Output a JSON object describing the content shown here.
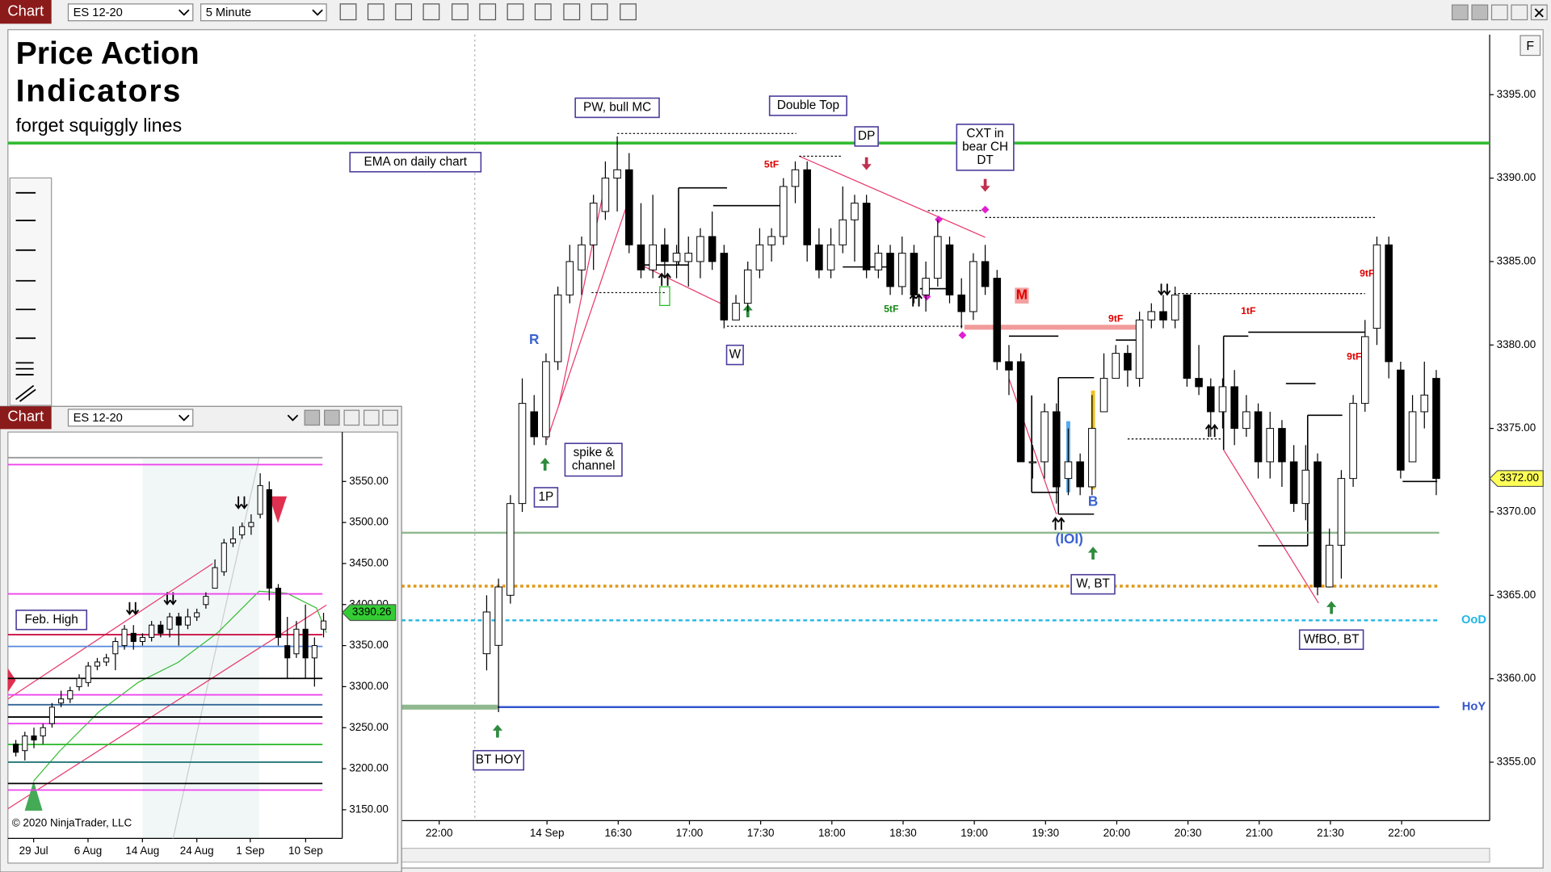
{
  "toolbar": {
    "tab": "Chart",
    "instrument": "ES 12-20",
    "interval": "5 Minute",
    "button": "F"
  },
  "overlay": {
    "title": [
      "Price Action",
      "Indicators"
    ],
    "subtitle": "forget squiggly lines"
  },
  "chart_data": [
    {
      "type": "candlestick",
      "up_color": "#ffffff",
      "down_color": "#000000",
      "wick_color": "#000000",
      "open": [
        3361.5,
        3362,
        3365,
        3370.5,
        3376,
        3374.5,
        3379,
        3383,
        3384.5,
        3386,
        3388,
        3390,
        3390.5,
        3386,
        3384.5,
        3386,
        3385,
        3385,
        3385,
        3386.5,
        3385.5,
        3381.5,
        3382.5,
        3384.5,
        3386,
        3386.5,
        3389.5,
        3390.5,
        3386,
        3384.5,
        3386,
        3387.5,
        3388.5,
        3384.5,
        3385.5,
        3383.5,
        3385.5,
        3383,
        3384,
        3386,
        3383,
        3382,
        3385,
        3384,
        3379,
        3379,
        3373,
        3373,
        3376,
        3372,
        3373,
        3371.5,
        3376,
        3378,
        3379.5,
        3378,
        3381.5,
        3382,
        3381.5,
        3383,
        3378,
        3377.5,
        3376,
        3377.5,
        3375,
        3376,
        3373,
        3375,
        3373,
        3370.5,
        3373,
        3365.5,
        3368,
        3372,
        3376.5,
        3381,
        3386,
        3378.5,
        3373,
        3376,
        3378
      ],
      "high": [
        3365,
        3366,
        3371,
        3378,
        3377,
        3379.5,
        3383.5,
        3386,
        3386.5,
        3389,
        3391,
        3392.5,
        3391.5,
        3388.5,
        3389,
        3387,
        3386,
        3386.5,
        3387,
        3388,
        3386,
        3383,
        3385,
        3387,
        3387,
        3390,
        3391,
        3391,
        3387,
        3387,
        3389.5,
        3389,
        3389,
        3386,
        3386,
        3386.5,
        3386,
        3385,
        3387.5,
        3386.5,
        3384,
        3385.5,
        3386,
        3384.5,
        3380,
        3379.5,
        3374,
        3376.5,
        3376.5,
        3375,
        3373.5,
        3377,
        3379.5,
        3380,
        3380,
        3382,
        3382.5,
        3383,
        3383.5,
        3383,
        3380,
        3378,
        3378,
        3378.5,
        3377,
        3376.5,
        3376,
        3375.5,
        3374,
        3374,
        3373.5,
        3369,
        3372.5,
        3377,
        3381.5,
        3386.5,
        3386.5,
        3379,
        3377,
        3379,
        3378.5
      ],
      "low": [
        3360.5,
        3358,
        3364.5,
        3370,
        3374,
        3374,
        3378.5,
        3382.5,
        3383,
        3384.5,
        3387.5,
        3388,
        3385.5,
        3384,
        3384,
        3384,
        3384,
        3383.5,
        3384,
        3384.5,
        3381,
        3381.5,
        3382,
        3384,
        3385,
        3386,
        3388.5,
        3385,
        3384,
        3384,
        3385.5,
        3385,
        3384,
        3384,
        3383,
        3383,
        3382.5,
        3382,
        3383.5,
        3382.5,
        3381,
        3381.5,
        3383,
        3378.5,
        3377,
        3373,
        3372,
        3372,
        3370.5,
        3371,
        3371,
        3371,
        3376,
        3378,
        3377.5,
        3377.5,
        3381,
        3381,
        3381,
        3377.5,
        3377,
        3374.5,
        3375,
        3374,
        3374.5,
        3372,
        3372,
        3371.5,
        3370,
        3369.5,
        3365,
        3365.5,
        3366,
        3371.5,
        3376,
        3380,
        3378,
        3372,
        3373,
        3375,
        3371
      ],
      "close": [
        3364,
        3365.5,
        3370.5,
        3376.5,
        3374.5,
        3379,
        3383,
        3385,
        3386,
        3388.5,
        3390,
        3390.5,
        3386,
        3384.5,
        3386,
        3385,
        3385.5,
        3385.5,
        3386.5,
        3385,
        3381.5,
        3382.5,
        3384.5,
        3386,
        3386.5,
        3389.5,
        3390.5,
        3386,
        3384.5,
        3386,
        3387.5,
        3388.5,
        3384.5,
        3385.5,
        3383.5,
        3385.5,
        3383,
        3384,
        3386.5,
        3383,
        3382,
        3385,
        3383.5,
        3379,
        3378.5,
        3373,
        3373,
        3376,
        3371.5,
        3373,
        3371.5,
        3375,
        3378,
        3379.5,
        3378.5,
        3381.5,
        3382,
        3381.5,
        3383,
        3378,
        3377.5,
        3376,
        3377.5,
        3375,
        3376,
        3373,
        3375,
        3373,
        3370.5,
        3372.5,
        3365.5,
        3368,
        3372,
        3376.5,
        3380.5,
        3386,
        3379,
        3372.5,
        3376,
        3377,
        3372
      ],
      "ylim": [
        3351.5,
        3398.6
      ],
      "yticks": [
        {
          "value": 3395,
          "label": "3395.00"
        },
        {
          "value": 3390,
          "label": "3390.00"
        },
        {
          "value": 3385,
          "label": "3385.00"
        },
        {
          "value": 3380,
          "label": "3380.00"
        },
        {
          "value": 3375,
          "label": "3375.00"
        },
        {
          "value": 3370,
          "label": "3370.00"
        },
        {
          "value": 3365,
          "label": "3365.00"
        },
        {
          "value": 3360,
          "label": "3360.00"
        },
        {
          "value": 3355,
          "label": "3355.00"
        }
      ],
      "xtick_labels": [
        "22:00",
        "14 Sep",
        "16:30",
        "17:00",
        "17:30",
        "18:00",
        "18:30",
        "19:00",
        "19:30",
        "20:00",
        "20:30",
        "21:00",
        "21:30",
        "22:00"
      ],
      "last_price": {
        "value": 3372,
        "label": "3372.00",
        "color": "#ffff55"
      },
      "levels": [
        {
          "value": 3392.1,
          "color": "#33bb33"
        },
        {
          "value": 3358.3,
          "color": "#3355cc",
          "label": "HoY"
        },
        {
          "value": 3363.5,
          "color": "#22b5e6",
          "style": "dashed",
          "label": "OoD"
        },
        {
          "value": 3365.55,
          "color": "#e09a1a",
          "style": "dotted"
        },
        {
          "value": 3368.75,
          "color": "#8fb88f"
        }
      ],
      "annotations": [
        {
          "text": "PW, bull MC",
          "boxed": true
        },
        {
          "text": "Double Top",
          "boxed": true
        },
        {
          "text": "DP",
          "boxed": true
        },
        {
          "lines": [
            "CXT in",
            "bear CH",
            "DT"
          ],
          "boxed": true
        },
        {
          "text": "EMA on daily chart",
          "boxed": true
        },
        {
          "text": "R",
          "color": "#3a62d0"
        },
        {
          "lines": [
            "spike &",
            "channel"
          ],
          "boxed": true
        },
        {
          "text": "1P",
          "boxed": true
        },
        {
          "text": "W",
          "boxed": true
        },
        {
          "text": "5tF",
          "color": "#e00000"
        },
        {
          "text": "5tF",
          "color": "#118811"
        },
        {
          "text": "9tF",
          "color": "#e00000"
        },
        {
          "text": "1tF",
          "color": "#e00000"
        },
        {
          "text": "9tF",
          "color": "#e00000"
        },
        {
          "text": "9tF",
          "color": "#e00000"
        },
        {
          "text": "M",
          "color": "#e00000"
        },
        {
          "text": "B",
          "color": "#3a62d0"
        },
        {
          "text": "(IOI)",
          "color": "#3a62d0"
        },
        {
          "text": "W, BT",
          "boxed": true
        },
        {
          "text": "WfBO, BT",
          "boxed": true
        },
        {
          "text": "BT HOY",
          "boxed": true
        }
      ]
    },
    {
      "type": "candlestick",
      "up_color": "#ffffff",
      "down_color": "#000000",
      "wick_color": "#000000",
      "open": [
        3230,
        3222,
        3240,
        3240,
        3255,
        3280,
        3285,
        3300,
        3305,
        3325,
        3330,
        3340,
        3350,
        3365,
        3355,
        3360,
        3375,
        3370,
        3385,
        3375,
        3385,
        3400,
        3420,
        3440,
        3475,
        3485,
        3495,
        3510,
        3540,
        3420,
        3350,
        3340,
        3370,
        3335,
        3370
      ],
      "high": [
        3235,
        3245,
        3250,
        3255,
        3280,
        3295,
        3300,
        3315,
        3330,
        3335,
        3340,
        3360,
        3375,
        3375,
        3365,
        3380,
        3380,
        3390,
        3390,
        3395,
        3395,
        3415,
        3455,
        3480,
        3495,
        3500,
        3510,
        3560,
        3550,
        3425,
        3385,
        3380,
        3400,
        3360,
        3390
      ],
      "low": [
        3215,
        3210,
        3225,
        3230,
        3250,
        3275,
        3280,
        3295,
        3300,
        3320,
        3325,
        3320,
        3345,
        3345,
        3350,
        3355,
        3360,
        3360,
        3350,
        3370,
        3380,
        3395,
        3420,
        3435,
        3470,
        3480,
        3485,
        3505,
        3405,
        3350,
        3310,
        3335,
        3310,
        3300,
        3360
      ],
      "close": [
        3220,
        3240,
        3235,
        3250,
        3275,
        3285,
        3295,
        3310,
        3325,
        3330,
        3335,
        3355,
        3370,
        3355,
        3360,
        3375,
        3365,
        3385,
        3375,
        3385,
        3390,
        3410,
        3445,
        3475,
        3480,
        3495,
        3500,
        3545,
        3420,
        3360,
        3335,
        3370,
        3335,
        3350,
        3380
      ],
      "ylim": [
        3115.1,
        3610.2
      ],
      "yticks": [
        {
          "value": 3550,
          "label": "3550.00"
        },
        {
          "value": 3500,
          "label": "3500.00"
        },
        {
          "value": 3450,
          "label": "3450.00"
        },
        {
          "value": 3400,
          "label": "3400.00"
        },
        {
          "value": 3350,
          "label": "3350.00"
        },
        {
          "value": 3300,
          "label": "3300.00"
        },
        {
          "value": 3250,
          "label": "3250.00"
        },
        {
          "value": 3200,
          "label": "3200.00"
        },
        {
          "value": 3150,
          "label": "3150.00"
        }
      ],
      "xtick_labels": [
        "29 Jul",
        "6 Aug",
        "14 Aug",
        "24 Aug",
        "1 Sep",
        "10 Sep"
      ],
      "last_price": {
        "value": 3390.26,
        "label": "3390.26",
        "color": "#33cc33"
      },
      "levels": [
        {
          "value": 3579,
          "color": "#999999"
        },
        {
          "value": 3570.5,
          "color": "#ee44ee"
        },
        {
          "value": 3413,
          "color": "#ee44ee"
        },
        {
          "value": 3363.3,
          "color": "#cc1144"
        },
        {
          "value": 3349,
          "color": "#5588dd"
        },
        {
          "value": 3310,
          "color": "#000000"
        },
        {
          "value": 3290,
          "color": "#ee44ee"
        },
        {
          "value": 3278,
          "color": "#336699"
        },
        {
          "value": 3263,
          "color": "#000000"
        },
        {
          "value": 3255,
          "color": "#ee44ee"
        },
        {
          "value": 3229.5,
          "color": "#33bb33"
        },
        {
          "value": 3208,
          "color": "#227777"
        },
        {
          "value": 3182,
          "color": "#000000"
        },
        {
          "value": 3174,
          "color": "#ee44ee"
        }
      ],
      "annotations": [
        {
          "text": "Feb. High",
          "boxed": true
        }
      ],
      "copyright": "© 2020 NinjaTrader, LLC"
    }
  ]
}
